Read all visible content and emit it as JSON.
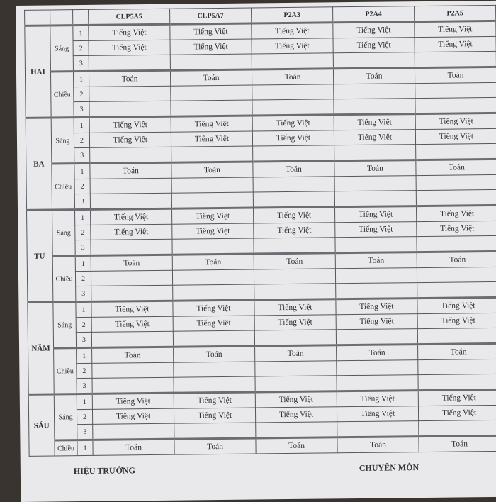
{
  "columns": [
    "CLP5A5",
    "CLP5A7",
    "P2A3",
    "P2A4",
    "P2A5"
  ],
  "days": [
    {
      "name": "HAI",
      "sessions": [
        {
          "name": "Sáng",
          "periods": [
            {
              "no": "1",
              "cells": [
                "Tiếng Việt",
                "Tiếng Việt",
                "Tiếng Việt",
                "Tiếng Việt",
                "Tiếng Việt"
              ]
            },
            {
              "no": "2",
              "cells": [
                "Tiếng Việt",
                "Tiếng Việt",
                "Tiếng Việt",
                "Tiếng Việt",
                "Tiếng Việt"
              ]
            },
            {
              "no": "3",
              "cells": [
                "",
                "",
                "",
                "",
                ""
              ]
            }
          ]
        },
        {
          "name": "Chiều",
          "periods": [
            {
              "no": "1",
              "cells": [
                "Toán",
                "Toán",
                "Toán",
                "Toán",
                "Toán"
              ]
            },
            {
              "no": "2",
              "cells": [
                "",
                "",
                "",
                "",
                ""
              ]
            },
            {
              "no": "3",
              "cells": [
                "",
                "",
                "",
                "",
                ""
              ]
            }
          ]
        }
      ]
    },
    {
      "name": "BA",
      "sessions": [
        {
          "name": "Sáng",
          "periods": [
            {
              "no": "1",
              "cells": [
                "Tiếng Việt",
                "Tiếng Việt",
                "Tiếng Việt",
                "Tiếng Việt",
                "Tiếng Việt"
              ]
            },
            {
              "no": "2",
              "cells": [
                "Tiếng Việt",
                "Tiếng Việt",
                "Tiếng Việt",
                "Tiếng Việt",
                "Tiếng Việt"
              ]
            },
            {
              "no": "3",
              "cells": [
                "",
                "",
                "",
                "",
                ""
              ]
            }
          ]
        },
        {
          "name": "Chiều",
          "periods": [
            {
              "no": "1",
              "cells": [
                "Toán",
                "Toán",
                "Toán",
                "Toán",
                "Toán"
              ]
            },
            {
              "no": "2",
              "cells": [
                "",
                "",
                "",
                "",
                ""
              ]
            },
            {
              "no": "3",
              "cells": [
                "",
                "",
                "",
                "",
                ""
              ]
            }
          ]
        }
      ]
    },
    {
      "name": "TƯ",
      "sessions": [
        {
          "name": "Sáng",
          "periods": [
            {
              "no": "1",
              "cells": [
                "Tiếng Việt",
                "Tiếng Việt",
                "Tiếng Việt",
                "Tiếng Việt",
                "Tiếng Việt"
              ]
            },
            {
              "no": "2",
              "cells": [
                "Tiếng Việt",
                "Tiếng Việt",
                "Tiếng Việt",
                "Tiếng Việt",
                "Tiếng Việt"
              ]
            },
            {
              "no": "3",
              "cells": [
                "",
                "",
                "",
                "",
                ""
              ]
            }
          ]
        },
        {
          "name": "Chiều",
          "periods": [
            {
              "no": "1",
              "cells": [
                "Toán",
                "Toán",
                "Toán",
                "Toán",
                "Toán"
              ]
            },
            {
              "no": "2",
              "cells": [
                "",
                "",
                "",
                "",
                ""
              ]
            },
            {
              "no": "3",
              "cells": [
                "",
                "",
                "",
                "",
                ""
              ]
            }
          ]
        }
      ]
    },
    {
      "name": "NĂM",
      "sessions": [
        {
          "name": "Sáng",
          "periods": [
            {
              "no": "1",
              "cells": [
                "Tiếng Việt",
                "Tiếng Việt",
                "Tiếng Việt",
                "Tiếng Việt",
                "Tiếng Việt"
              ]
            },
            {
              "no": "2",
              "cells": [
                "Tiếng Việt",
                "Tiếng Việt",
                "Tiếng Việt",
                "Tiếng Việt",
                "Tiếng Việt"
              ]
            },
            {
              "no": "3",
              "cells": [
                "",
                "",
                "",
                "",
                ""
              ]
            }
          ]
        },
        {
          "name": "Chiều",
          "periods": [
            {
              "no": "1",
              "cells": [
                "Toán",
                "Toán",
                "Toán",
                "Toán",
                "Toán"
              ]
            },
            {
              "no": "2",
              "cells": [
                "",
                "",
                "",
                "",
                ""
              ]
            },
            {
              "no": "3",
              "cells": [
                "",
                "",
                "",
                "",
                ""
              ]
            }
          ]
        }
      ]
    },
    {
      "name": "SÁU",
      "sessions": [
        {
          "name": "Sáng",
          "periods": [
            {
              "no": "1",
              "cells": [
                "Tiếng Việt",
                "Tiếng Việt",
                "Tiếng Việt",
                "Tiếng Việt",
                "Tiếng Việt"
              ]
            },
            {
              "no": "2",
              "cells": [
                "Tiếng Việt",
                "Tiếng Việt",
                "Tiếng Việt",
                "Tiếng Việt",
                "Tiếng Việt"
              ]
            },
            {
              "no": "3",
              "cells": [
                "",
                "",
                "",
                "",
                ""
              ]
            }
          ]
        },
        {
          "name": "Chiều",
          "periods": [
            {
              "no": "1",
              "cells": [
                "Toán",
                "Toán",
                "Toán",
                "Toán",
                "Toán"
              ]
            }
          ]
        }
      ]
    }
  ],
  "footer": {
    "left": "HIỆU TRƯỞNG",
    "right": "CHUYÊN MÔN"
  }
}
